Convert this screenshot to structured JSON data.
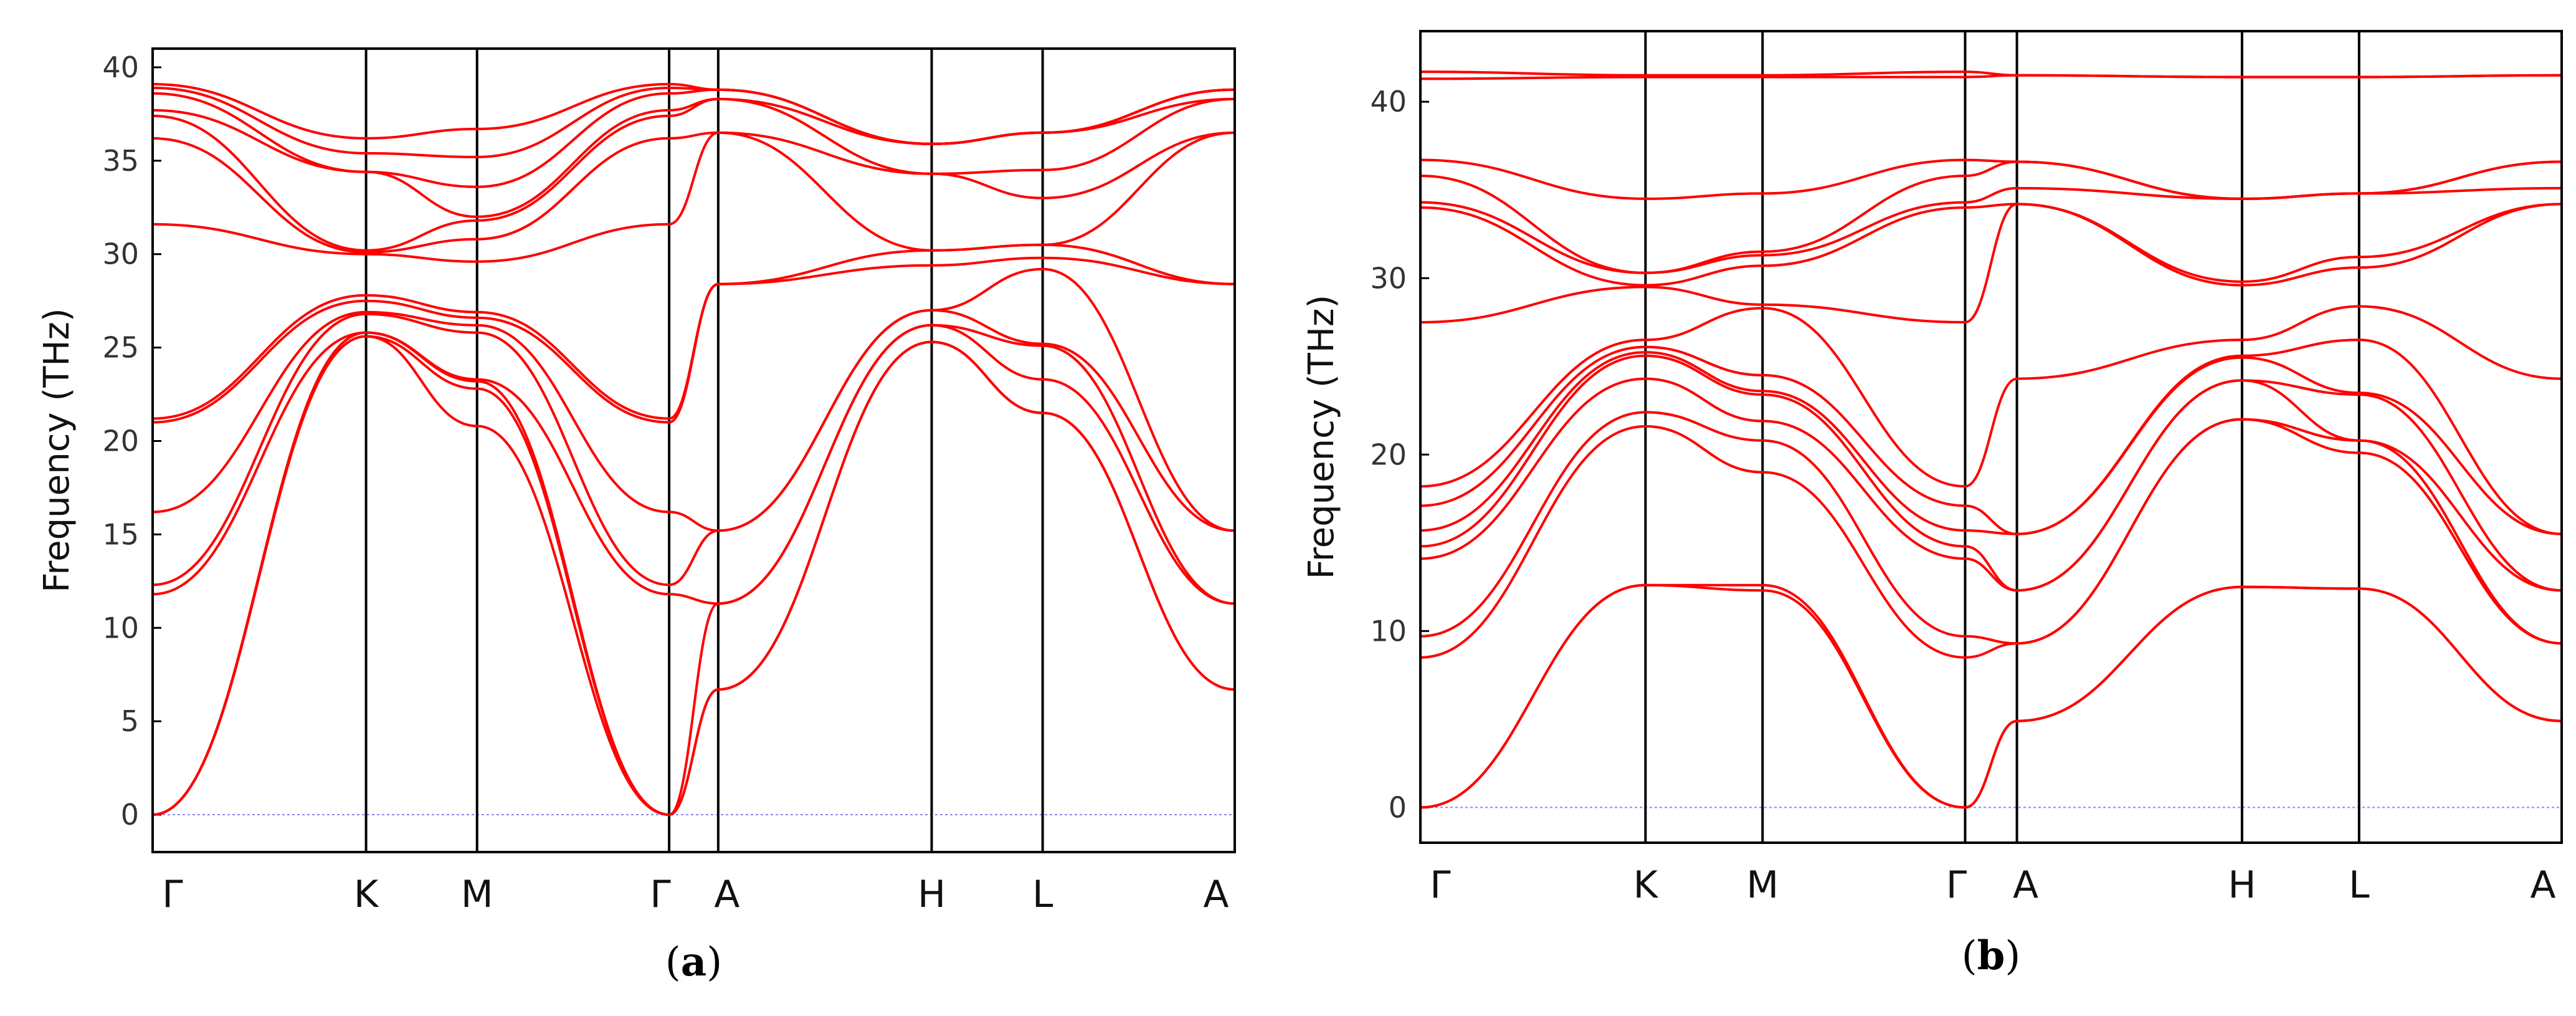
{
  "colors": {
    "band": "#ff0000",
    "zero_line": "#8888ee",
    "frame": "#000000",
    "background": "#ffffff"
  },
  "chart_data": [
    {
      "type": "line",
      "panel_label": "a",
      "ylabel": "Frequency (THz)",
      "ylim": [
        -2,
        41
      ],
      "yticks": [
        0,
        5,
        10,
        15,
        20,
        25,
        30,
        35,
        40
      ],
      "grid": false,
      "legend": "none",
      "x": [
        0,
        1.0,
        1.52,
        2.42,
        2.65,
        3.65,
        4.17,
        5.07
      ],
      "high_symmetry_points": [
        {
          "label": "Γ",
          "x": 0
        },
        {
          "label": "K",
          "x": 1.0
        },
        {
          "label": "M",
          "x": 1.52
        },
        {
          "label": "Γ",
          "x": 2.42
        },
        {
          "label": "A",
          "x": 2.65
        },
        {
          "label": "H",
          "x": 3.65
        },
        {
          "label": "L",
          "x": 4.17
        },
        {
          "label": "A",
          "x": 5.07
        }
      ],
      "series": [
        {
          "values": [
            0.0,
            25.6,
            20.8,
            0.0,
            6.7,
            25.3,
            21.5,
            6.7
          ]
        },
        {
          "values": [
            0.0,
            25.6,
            22.8,
            0.0,
            6.7,
            25.3,
            21.5,
            6.7
          ]
        },
        {
          "values": [
            0.0,
            25.8,
            23.2,
            0.0,
            11.3,
            26.2,
            23.3,
            11.3
          ]
        },
        {
          "values": [
            11.8,
            25.8,
            23.3,
            11.8,
            11.3,
            26.2,
            25.1,
            11.3
          ]
        },
        {
          "values": [
            12.3,
            26.8,
            25.8,
            12.3,
            15.2,
            27.0,
            25.2,
            15.2
          ]
        },
        {
          "values": [
            16.2,
            26.9,
            26.2,
            16.2,
            15.2,
            27.0,
            29.2,
            15.2
          ]
        },
        {
          "values": [
            21.0,
            27.5,
            26.6,
            21.0,
            28.4,
            29.4,
            29.8,
            28.4
          ]
        },
        {
          "values": [
            21.2,
            27.8,
            26.9,
            21.2,
            28.4,
            30.2,
            30.5,
            28.4
          ]
        },
        {
          "values": [
            31.6,
            30.0,
            29.6,
            31.6,
            36.5,
            30.2,
            30.5,
            36.5
          ]
        },
        {
          "values": [
            36.2,
            30.1,
            30.8,
            36.2,
            36.5,
            34.3,
            33.0,
            36.5
          ]
        },
        {
          "values": [
            37.4,
            30.2,
            31.8,
            37.4,
            38.3,
            34.3,
            34.5,
            38.3
          ]
        },
        {
          "values": [
            37.7,
            34.4,
            32.0,
            37.7,
            38.3,
            35.9,
            36.5,
            38.3
          ]
        },
        {
          "values": [
            38.6,
            34.4,
            33.6,
            38.6,
            38.8,
            35.9,
            36.5,
            38.8
          ]
        },
        {
          "values": [
            38.9,
            35.4,
            35.2,
            38.9,
            38.8,
            35.9,
            36.5,
            38.8
          ]
        },
        {
          "values": [
            39.1,
            36.2,
            36.7,
            39.1,
            38.8,
            35.9,
            36.5,
            38.8
          ]
        }
      ]
    },
    {
      "type": "line",
      "panel_label": "b",
      "ylabel": "Frequency (THz)",
      "ylim": [
        -2,
        44
      ],
      "yticks": [
        0,
        10,
        20,
        30,
        40
      ],
      "grid": false,
      "legend": "none",
      "x": [
        0,
        1.0,
        1.52,
        2.42,
        2.65,
        3.65,
        4.17,
        5.07
      ],
      "high_symmetry_points": [
        {
          "label": "Γ",
          "x": 0
        },
        {
          "label": "K",
          "x": 1.0
        },
        {
          "label": "M",
          "x": 1.52
        },
        {
          "label": "Γ",
          "x": 2.42
        },
        {
          "label": "A",
          "x": 2.65
        },
        {
          "label": "H",
          "x": 3.65
        },
        {
          "label": "L",
          "x": 4.17
        },
        {
          "label": "A",
          "x": 5.07
        }
      ],
      "series": [
        {
          "values": [
            0.0,
            12.6,
            12.3,
            0.0,
            4.9,
            12.5,
            12.4,
            4.9
          ]
        },
        {
          "values": [
            0.0,
            12.6,
            12.6,
            0.0,
            4.9,
            12.5,
            12.4,
            4.9
          ]
        },
        {
          "values": [
            8.5,
            21.6,
            19.0,
            8.5,
            9.3,
            22.0,
            20.1,
            9.3
          ]
        },
        {
          "values": [
            9.7,
            22.4,
            20.8,
            9.7,
            9.3,
            22.0,
            20.8,
            9.3
          ]
        },
        {
          "values": [
            14.1,
            24.3,
            21.9,
            14.1,
            12.3,
            24.2,
            20.8,
            12.3
          ]
        },
        {
          "values": [
            14.8,
            25.6,
            23.4,
            14.8,
            12.3,
            24.2,
            23.4,
            12.3
          ]
        },
        {
          "values": [
            15.7,
            25.8,
            23.6,
            15.7,
            15.5,
            25.5,
            23.5,
            15.5
          ]
        },
        {
          "values": [
            17.1,
            26.1,
            24.5,
            17.1,
            15.5,
            25.6,
            26.5,
            15.5
          ]
        },
        {
          "values": [
            18.2,
            26.5,
            28.3,
            18.2,
            24.3,
            26.5,
            28.4,
            24.3
          ]
        },
        {
          "values": [
            27.5,
            29.5,
            28.5,
            27.5,
            34.2,
            29.6,
            30.6,
            34.2
          ]
        },
        {
          "values": [
            34.0,
            29.6,
            30.7,
            34.0,
            34.2,
            29.8,
            31.2,
            34.2
          ]
        },
        {
          "values": [
            34.3,
            30.3,
            31.3,
            34.3,
            35.1,
            34.5,
            34.8,
            35.1
          ]
        },
        {
          "values": [
            35.8,
            30.3,
            31.5,
            35.8,
            36.6,
            34.5,
            34.8,
            36.6
          ]
        },
        {
          "values": [
            36.7,
            34.5,
            34.8,
            36.7,
            36.6,
            34.5,
            34.8,
            36.6
          ]
        },
        {
          "values": [
            41.3,
            41.4,
            41.4,
            41.4,
            41.5,
            41.4,
            41.4,
            41.5
          ]
        },
        {
          "values": [
            41.7,
            41.5,
            41.5,
            41.7,
            41.5,
            41.4,
            41.4,
            41.5
          ]
        }
      ]
    }
  ]
}
